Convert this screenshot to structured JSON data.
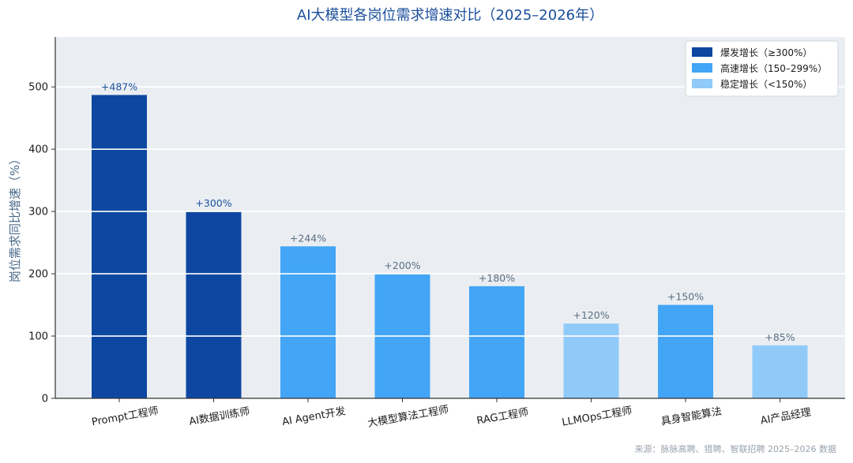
{
  "chart_data": {
    "type": "bar",
    "title": "AI大模型各岗位需求增速对比（2025–2026年）",
    "xlabel": "",
    "ylabel": "岗位需求同比增速（%）",
    "ylim": [
      0,
      580
    ],
    "yticks": [
      0,
      100,
      200,
      300,
      400,
      500
    ],
    "grid": true,
    "legend_position": "top-right",
    "categories": [
      "Prompt工程师",
      "AI数据训练师",
      "AI Agent开发",
      "大模型算法工程师",
      "RAG工程师",
      "LLMOps工程师",
      "具身智能算法",
      "AI产品经理"
    ],
    "values": [
      487,
      300,
      244,
      200,
      180,
      120,
      150,
      85
    ],
    "data_labels": [
      "+487%",
      "+300%",
      "+244%",
      "+200%",
      "+180%",
      "+120%",
      "+150%",
      "+85%"
    ],
    "groups": [
      "explosive",
      "explosive",
      "high",
      "high",
      "high",
      "stable",
      "high",
      "stable"
    ],
    "legend": [
      {
        "key": "explosive",
        "label": "爆发增长（≥300%）",
        "color": "#0d47a1"
      },
      {
        "key": "high",
        "label": "高速增长（150–299%）",
        "color": "#42a5f5"
      },
      {
        "key": "stable",
        "label": "稳定增长（<150%）",
        "color": "#90caf9"
      }
    ],
    "source": "来源：脉脉高聘、猎聘、智联招聘 2025–2026 数据"
  }
}
